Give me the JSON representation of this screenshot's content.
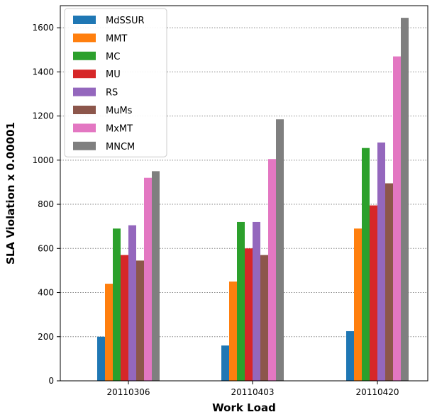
{
  "chart_data": {
    "type": "bar",
    "title": "",
    "xlabel": "Work Load",
    "ylabel": "SLA Violation x 0.00001",
    "categories": [
      "20110306",
      "20110403",
      "20110420"
    ],
    "ylim": [
      0,
      1700
    ],
    "yticks": [
      0,
      200,
      400,
      600,
      800,
      1000,
      1200,
      1400,
      1600
    ],
    "grid": "horizontal-dotted",
    "legend_position": "top-left",
    "series": [
      {
        "name": "MdSSUR",
        "color": "#1f77b4",
        "values": [
          200,
          160,
          225
        ]
      },
      {
        "name": "MMT",
        "color": "#ff7f0e",
        "values": [
          440,
          450,
          690
        ]
      },
      {
        "name": "MC",
        "color": "#2ca02c",
        "values": [
          690,
          720,
          1055
        ]
      },
      {
        "name": "MU",
        "color": "#d62728",
        "values": [
          570,
          600,
          795
        ]
      },
      {
        "name": "RS",
        "color": "#9467bd",
        "values": [
          705,
          720,
          1080
        ]
      },
      {
        "name": "MuMs",
        "color": "#8c564b",
        "values": [
          545,
          570,
          895
        ]
      },
      {
        "name": "MxMT",
        "color": "#e377c2",
        "values": [
          920,
          1005,
          1470
        ]
      },
      {
        "name": "MNCM",
        "color": "#7f7f7f",
        "values": [
          950,
          1185,
          1645
        ]
      }
    ]
  }
}
